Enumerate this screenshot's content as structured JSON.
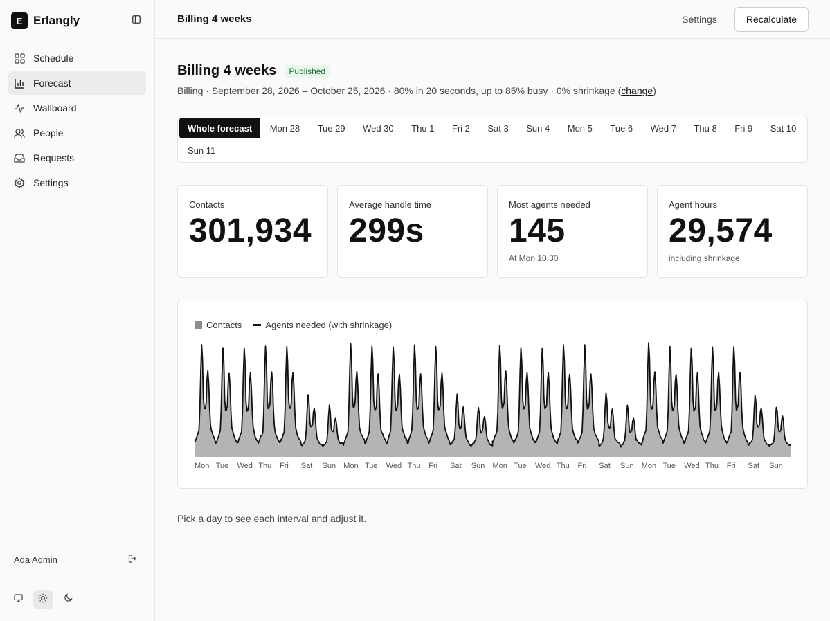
{
  "app": {
    "name": "Erlangly",
    "logo_letter": "E"
  },
  "sidebar": {
    "items": [
      {
        "label": "Schedule",
        "icon": "grid-icon",
        "active": false
      },
      {
        "label": "Forecast",
        "icon": "bar-chart-icon",
        "active": true
      },
      {
        "label": "Wallboard",
        "icon": "activity-icon",
        "active": false
      },
      {
        "label": "People",
        "icon": "users-icon",
        "active": false
      },
      {
        "label": "Requests",
        "icon": "inbox-icon",
        "active": false
      },
      {
        "label": "Settings",
        "icon": "gear-icon",
        "active": false
      }
    ],
    "user": "Ada Admin",
    "theme_options": [
      "monitor-icon",
      "sun-icon",
      "moon-icon"
    ],
    "theme_selected": "sun-icon"
  },
  "header": {
    "title": "Billing 4 weeks",
    "settings_label": "Settings",
    "recalc_label": "Recalculate"
  },
  "forecast": {
    "title": "Billing 4 weeks",
    "status": "Published",
    "summary": "Billing · September 28, 2026 – October 25, 2026 · 80% in 20 seconds, up to 85% busy · 0% shrinkage (",
    "change_label": "change",
    "summary_end": ")"
  },
  "tabs": [
    "Whole forecast",
    "Mon 28",
    "Tue 29",
    "Wed 30",
    "Thu 1",
    "Fri 2",
    "Sat 3",
    "Sun 4",
    "Mon 5",
    "Tue 6",
    "Wed 7",
    "Thu 8",
    "Fri 9",
    "Sat 10",
    "Sun 11"
  ],
  "active_tab": 0,
  "stats": [
    {
      "label": "Contacts",
      "value": "301,934",
      "note": ""
    },
    {
      "label": "Average handle time",
      "value": "299s",
      "note": ""
    },
    {
      "label": "Most agents needed",
      "value": "145",
      "note": "At Mon 10:30"
    },
    {
      "label": "Agent hours",
      "value": "29,574",
      "note": "including shrinkage"
    }
  ],
  "chart_data": {
    "type": "area",
    "legend": [
      "Contacts",
      "Agents needed (with shrinkage)"
    ],
    "x_tick_labels": [
      "Mon",
      "Tue",
      "Wed",
      "Thu",
      "Fri",
      "Sat",
      "Sun",
      "Mon",
      "Tue",
      "Wed",
      "Thu",
      "Fri",
      "Sat",
      "Sun",
      "Mon",
      "Tue",
      "Wed",
      "Thu",
      "Fri",
      "Sat",
      "Sun",
      "Mon",
      "Tue",
      "Wed",
      "Thu",
      "Fri",
      "Sat",
      "Sun"
    ],
    "daily_peak_relative": [
      1.0,
      0.97,
      0.97,
      0.98,
      0.98,
      0.5,
      0.38,
      1.0,
      0.97,
      0.97,
      0.98,
      0.98,
      0.5,
      0.38,
      1.0,
      0.97,
      0.97,
      0.98,
      0.98,
      0.5,
      0.38,
      1.0,
      0.97,
      0.97,
      0.98,
      0.98,
      0.5,
      0.38
    ],
    "colors": {
      "contacts_fill": "#b4b4b4",
      "agents_line": "#111111"
    }
  },
  "hint": "Pick a day to see each interval and adjust it."
}
